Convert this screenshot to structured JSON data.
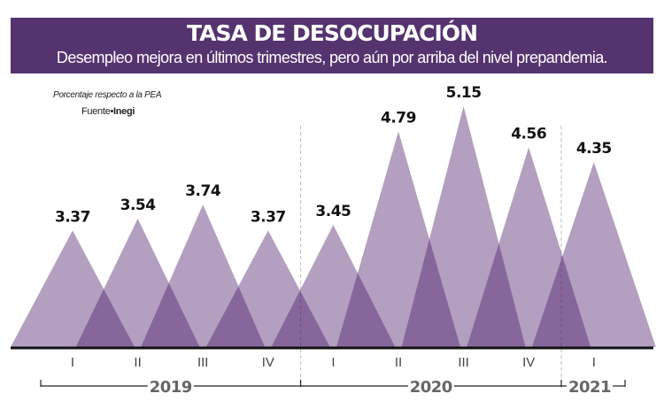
{
  "header": {
    "title": "TASA DE DESOCUPACIÓN",
    "subtitle": "Desempleo mejora en últimos trimestres, pero aún por arriba del nivel prepandemia."
  },
  "note": "Porcentaje respecto a la PEA",
  "source": {
    "label": "Fuente•",
    "name": "Inegi"
  },
  "colors": {
    "header": "#55336f",
    "triangle": "#4b1b69",
    "text": "#111111",
    "year": "#666666"
  },
  "chart_data": {
    "type": "area",
    "title": "TASA DE DESOCUPACIÓN",
    "ylabel": "Porcentaje respecto a la PEA",
    "categories": [
      "I",
      "II",
      "III",
      "IV",
      "I",
      "II",
      "III",
      "IV",
      "I"
    ],
    "years": [
      {
        "label": "2019",
        "quarters": 4
      },
      {
        "label": "2020",
        "quarters": 4
      },
      {
        "label": "2021",
        "quarters": 1
      }
    ],
    "values": [
      3.37,
      3.54,
      3.74,
      3.37,
      3.45,
      4.79,
      5.15,
      4.56,
      4.35
    ],
    "ylim": [
      1.7,
      5.2
    ],
    "grid": false
  }
}
